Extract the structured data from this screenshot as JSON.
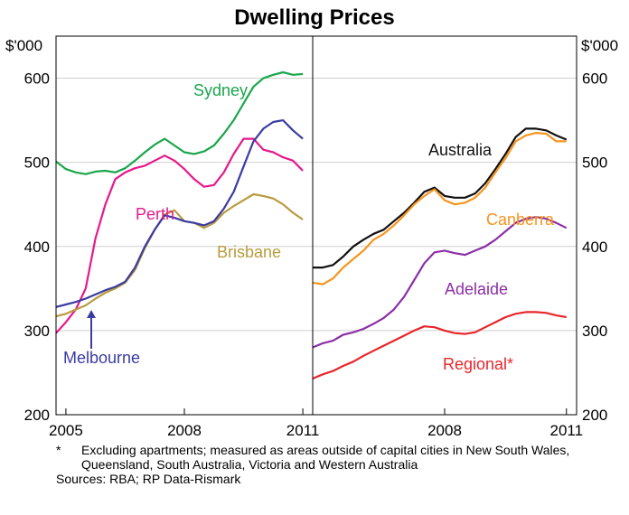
{
  "chart_data": {
    "title": "Dwelling Prices",
    "y_unit": "$'000",
    "ylim": [
      200,
      650
    ],
    "yticks": [
      200,
      300,
      400,
      500,
      600
    ],
    "grid": true,
    "panels": [
      {
        "name": "left",
        "type": "line",
        "xlim": [
          2004.75,
          2011.25
        ],
        "xtick_labels": [
          "2005",
          "2008",
          "2011"
        ],
        "xticks": [
          2005,
          2008,
          2011
        ],
        "series": [
          {
            "name": "Sydney",
            "color": "#1aa64b",
            "x": [
              2004.75,
              2005.0,
              2005.25,
              2005.5,
              2005.75,
              2006.0,
              2006.25,
              2006.5,
              2006.75,
              2007.0,
              2007.25,
              2007.5,
              2007.75,
              2008.0,
              2008.25,
              2008.5,
              2008.75,
              2009.0,
              2009.25,
              2009.5,
              2009.75,
              2010.0,
              2010.25,
              2010.5,
              2010.75,
              2011.0
            ],
            "values": [
              501,
              492,
              488,
              486,
              489,
              490,
              488,
              493,
              502,
              512,
              521,
              528,
              520,
              512,
              510,
              513,
              520,
              534,
              550,
              570,
              590,
              600,
              604,
              607,
              604,
              605
            ]
          },
          {
            "name": "Perth",
            "color": "#e6198c",
            "x": [
              2004.75,
              2005.0,
              2005.25,
              2005.5,
              2005.75,
              2006.0,
              2006.25,
              2006.5,
              2006.75,
              2007.0,
              2007.25,
              2007.5,
              2007.75,
              2008.0,
              2008.25,
              2008.5,
              2008.75,
              2009.0,
              2009.25,
              2009.5,
              2009.75,
              2010.0,
              2010.25,
              2010.5,
              2010.75,
              2011.0
            ],
            "values": [
              297,
              310,
              325,
              350,
              410,
              450,
              480,
              488,
              493,
              496,
              502,
              508,
              502,
              492,
              480,
              471,
              473,
              488,
              510,
              528,
              528,
              515,
              512,
              506,
              502,
              490
            ]
          },
          {
            "name": "Brisbane",
            "color": "#b89b3e",
            "x": [
              2004.75,
              2005.0,
              2005.25,
              2005.5,
              2005.75,
              2006.0,
              2006.25,
              2006.5,
              2006.75,
              2007.0,
              2007.25,
              2007.5,
              2007.75,
              2008.0,
              2008.25,
              2008.5,
              2008.75,
              2009.0,
              2009.25,
              2009.5,
              2009.75,
              2010.0,
              2010.25,
              2010.5,
              2010.75,
              2011.0
            ],
            "values": [
              317,
              320,
              325,
              330,
              338,
              345,
              350,
              357,
              372,
              398,
              420,
              438,
              443,
              430,
              428,
              422,
              428,
              440,
              448,
              455,
              462,
              460,
              457,
              450,
              440,
              432
            ]
          },
          {
            "name": "Melbourne",
            "color": "#3b3ba3",
            "x": [
              2004.75,
              2005.0,
              2005.25,
              2005.5,
              2005.75,
              2006.0,
              2006.25,
              2006.5,
              2006.75,
              2007.0,
              2007.25,
              2007.5,
              2007.75,
              2008.0,
              2008.25,
              2008.5,
              2008.75,
              2009.0,
              2009.25,
              2009.5,
              2009.75,
              2010.0,
              2010.25,
              2010.5,
              2010.75,
              2011.0
            ],
            "values": [
              328,
              331,
              334,
              338,
              343,
              348,
              352,
              358,
              375,
              400,
              420,
              437,
              434,
              430,
              428,
              425,
              430,
              445,
              465,
              495,
              525,
              540,
              548,
              550,
              538,
              528
            ]
          }
        ],
        "labels": [
          {
            "text": "Sydney",
            "series": "Sydney"
          },
          {
            "text": "Perth",
            "series": "Perth"
          },
          {
            "text": "Brisbane",
            "series": "Brisbane"
          },
          {
            "text": "Melbourne",
            "series": "Melbourne"
          }
        ]
      },
      {
        "name": "right",
        "type": "line",
        "xlim": [
          2004.75,
          2011.25
        ],
        "xtick_labels": [
          "2008",
          "2011"
        ],
        "xticks": [
          2008,
          2011
        ],
        "series": [
          {
            "name": "Australia",
            "color": "#111111",
            "x": [
              2004.75,
              2005.0,
              2005.25,
              2005.5,
              2005.75,
              2006.0,
              2006.25,
              2006.5,
              2006.75,
              2007.0,
              2007.25,
              2007.5,
              2007.75,
              2008.0,
              2008.25,
              2008.5,
              2008.75,
              2009.0,
              2009.25,
              2009.5,
              2009.75,
              2010.0,
              2010.25,
              2010.5,
              2010.75,
              2011.0
            ],
            "values": [
              375,
              375,
              378,
              388,
              400,
              408,
              415,
              420,
              430,
              440,
              452,
              465,
              470,
              460,
              458,
              458,
              463,
              475,
              492,
              510,
              530,
              540,
              540,
              538,
              532,
              527
            ]
          },
          {
            "name": "Canberra",
            "color": "#f7941d",
            "x": [
              2004.75,
              2005.0,
              2005.25,
              2005.5,
              2005.75,
              2006.0,
              2006.25,
              2006.5,
              2006.75,
              2007.0,
              2007.25,
              2007.5,
              2007.75,
              2008.0,
              2008.25,
              2008.5,
              2008.75,
              2009.0,
              2009.25,
              2009.5,
              2009.75,
              2010.0,
              2010.25,
              2010.5,
              2010.75,
              2011.0
            ],
            "values": [
              357,
              355,
              362,
              375,
              385,
              395,
              408,
              415,
              425,
              437,
              450,
              460,
              468,
              455,
              450,
              452,
              458,
              470,
              488,
              505,
              525,
              532,
              535,
              534,
              525,
              525
            ]
          },
          {
            "name": "Adelaide",
            "color": "#8b2fa6",
            "x": [
              2004.75,
              2005.0,
              2005.25,
              2005.5,
              2005.75,
              2006.0,
              2006.25,
              2006.5,
              2006.75,
              2007.0,
              2007.25,
              2007.5,
              2007.75,
              2008.0,
              2008.25,
              2008.5,
              2008.75,
              2009.0,
              2009.25,
              2009.5,
              2009.75,
              2010.0,
              2010.25,
              2010.5,
              2010.75,
              2011.0
            ],
            "values": [
              280,
              285,
              288,
              295,
              298,
              302,
              308,
              315,
              325,
              340,
              360,
              380,
              393,
              395,
              392,
              390,
              395,
              400,
              408,
              418,
              428,
              433,
              435,
              433,
              428,
              422
            ]
          },
          {
            "name": "Regional*",
            "color": "#e8262b",
            "x": [
              2004.75,
              2005.0,
              2005.25,
              2005.5,
              2005.75,
              2006.0,
              2006.25,
              2006.5,
              2006.75,
              2007.0,
              2007.25,
              2007.5,
              2007.75,
              2008.0,
              2008.25,
              2008.5,
              2008.75,
              2009.0,
              2009.25,
              2009.5,
              2009.75,
              2010.0,
              2010.25,
              2010.5,
              2010.75,
              2011.0
            ],
            "values": [
              243,
              248,
              252,
              258,
              263,
              270,
              276,
              282,
              288,
              294,
              300,
              305,
              304,
              300,
              297,
              296,
              298,
              304,
              310,
              316,
              320,
              322,
              322,
              321,
              318,
              316
            ]
          }
        ],
        "labels": [
          {
            "text": "Australia",
            "series": "Australia"
          },
          {
            "text": "Canberra",
            "series": "Canberra"
          },
          {
            "text": "Adelaide",
            "series": "Adelaide"
          },
          {
            "text": "Regional*",
            "series": "Regional*"
          }
        ]
      }
    ]
  },
  "footnote": {
    "mark": "*",
    "text": "Excluding apartments; measured as areas outside of capital cities in New South Wales, Queensland, South Australia, Victoria and Western Australia"
  },
  "sources": "Sources: RBA; RP Data-Rismark"
}
